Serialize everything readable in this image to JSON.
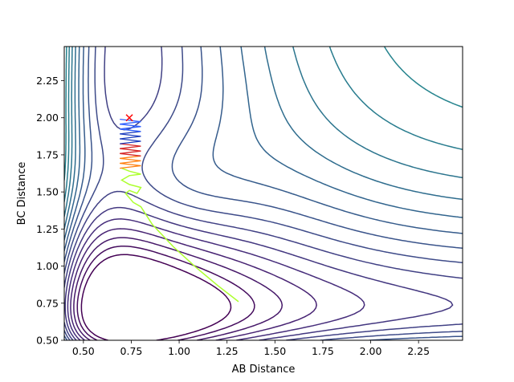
{
  "chart_data": {
    "type": "contour",
    "xlabel": "AB Distance",
    "ylabel": "BC Distance",
    "xlim": [
      0.4,
      2.48
    ],
    "ylim": [
      0.5,
      2.48
    ],
    "x_ticks": [
      0.5,
      0.75,
      1.0,
      1.25,
      1.5,
      1.75,
      2.0,
      2.25
    ],
    "x_tick_labels": [
      "0.50",
      "0.75",
      "1.00",
      "1.25",
      "1.50",
      "1.75",
      "2.00",
      "2.25"
    ],
    "y_ticks": [
      0.5,
      0.75,
      1.0,
      1.25,
      1.5,
      1.75,
      2.0,
      2.25
    ],
    "y_tick_labels": [
      "0.50",
      "0.75",
      "1.00",
      "1.25",
      "1.50",
      "1.75",
      "2.00",
      "2.25"
    ],
    "grid": false,
    "colormap": "viridis",
    "contour_levels": 32,
    "trajectory": {
      "color": "#adff2f",
      "points": [
        [
          1.31,
          0.76
        ],
        [
          1.2,
          0.87
        ],
        [
          1.08,
          1.0
        ],
        [
          0.97,
          1.13
        ],
        [
          0.86,
          1.28
        ],
        [
          0.8,
          1.4
        ],
        [
          0.76,
          1.43
        ],
        [
          0.74,
          1.46
        ],
        [
          0.72,
          1.49
        ],
        [
          0.74,
          1.51
        ],
        [
          0.78,
          1.49
        ],
        [
          0.8,
          1.53
        ],
        [
          0.74,
          1.55
        ],
        [
          0.7,
          1.58
        ],
        [
          0.74,
          1.61
        ],
        [
          0.8,
          1.62
        ],
        [
          0.74,
          1.64
        ],
        [
          0.7,
          1.66
        ]
      ]
    },
    "oscillation": {
      "x_min": 0.69,
      "x_max": 0.8,
      "y_start": 1.66,
      "y_end": 1.99,
      "turns": 20,
      "colors": [
        "#ff7f0e",
        "#d62728",
        "#1f3fbf",
        "#3060ff"
      ]
    },
    "marker": {
      "x": 0.74,
      "y": 2.0,
      "symbol": "x",
      "color": "#ff0000"
    }
  }
}
